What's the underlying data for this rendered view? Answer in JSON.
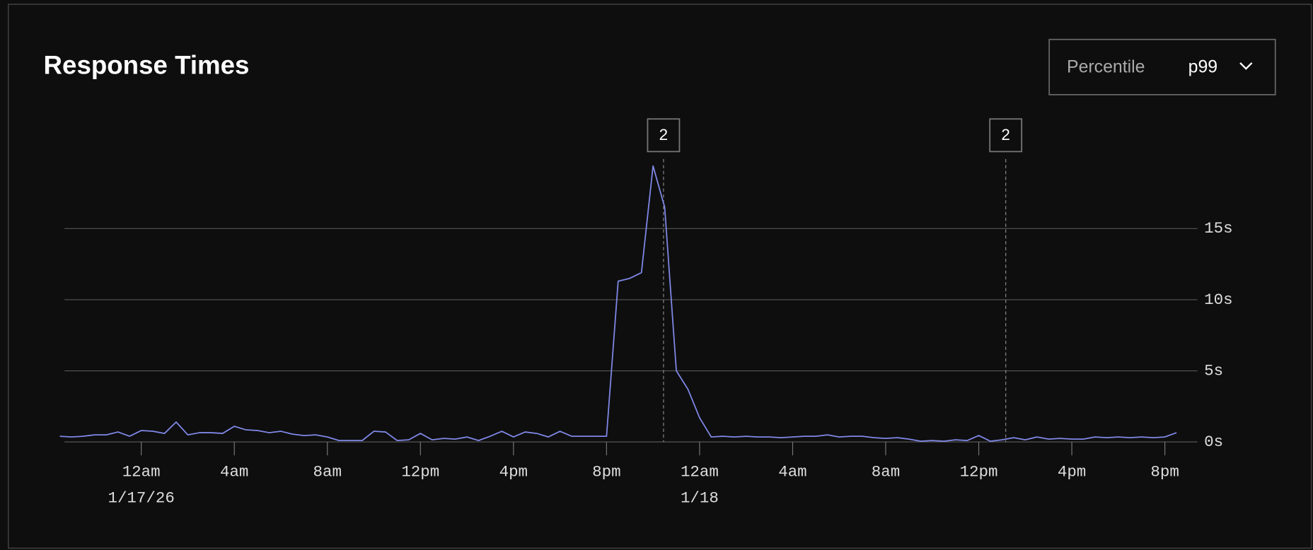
{
  "panel": {
    "percentile_label": "Percentile",
    "percentile_value": "p99"
  },
  "chart_data": {
    "type": "line",
    "title": "Response Times",
    "color": "#8088e8",
    "grid": true,
    "x": [
      -3.5,
      -3,
      -2.5,
      -2,
      -1.5,
      -1,
      -0.5,
      0,
      0.5,
      1,
      1.5,
      2,
      2.5,
      3,
      3.5,
      4,
      4.5,
      5,
      5.5,
      6,
      6.5,
      7,
      7.5,
      8,
      8.5,
      9,
      9.5,
      10,
      10.5,
      11,
      11.5,
      12,
      12.5,
      13,
      13.5,
      14,
      14.5,
      15,
      15.5,
      16,
      16.5,
      17,
      17.5,
      18,
      18.5,
      19,
      19.5,
      20,
      20.5,
      21,
      21.5,
      22,
      22.5,
      23,
      23.5,
      24,
      24.5,
      25,
      25.5,
      26,
      26.5,
      27,
      27.5,
      28,
      28.5,
      29,
      29.5,
      30,
      30.5,
      31,
      31.5,
      32,
      32.5,
      33,
      33.5,
      34,
      34.5,
      35,
      35.5,
      36,
      36.5,
      37,
      37.5,
      38,
      38.5,
      39,
      39.5,
      40,
      40.5,
      41,
      41.5,
      42,
      42.5,
      43,
      43.5,
      44,
      44.5
    ],
    "values": [
      0.4,
      0.35,
      0.4,
      0.5,
      0.5,
      0.7,
      0.4,
      0.8,
      0.75,
      0.6,
      1.4,
      0.5,
      0.65,
      0.65,
      0.6,
      1.1,
      0.85,
      0.8,
      0.65,
      0.75,
      0.55,
      0.45,
      0.5,
      0.35,
      0.1,
      0.1,
      0.1,
      0.75,
      0.7,
      0.1,
      0.15,
      0.6,
      0.15,
      0.25,
      0.2,
      0.35,
      0.1,
      0.4,
      0.75,
      0.35,
      0.7,
      0.6,
      0.35,
      0.75,
      0.4,
      0.4,
      0.4,
      0.4,
      11.3,
      11.5,
      11.9,
      19.4,
      16.5,
      5.0,
      3.7,
      1.7,
      0.35,
      0.4,
      0.35,
      0.4,
      0.35,
      0.35,
      0.3,
      0.35,
      0.4,
      0.4,
      0.5,
      0.35,
      0.4,
      0.4,
      0.3,
      0.25,
      0.3,
      0.2,
      0.05,
      0.1,
      0.05,
      0.15,
      0.1,
      0.45,
      0.05,
      0.15,
      0.3,
      0.15,
      0.35,
      0.2,
      0.25,
      0.2,
      0.2,
      0.35,
      0.3,
      0.35,
      0.3,
      0.35,
      0.3,
      0.35,
      0.65
    ],
    "xlim": [
      -3.3,
      45.4
    ],
    "xticks": [
      {
        "value": 0,
        "label": "12am",
        "date": "1/17/26"
      },
      {
        "value": 4,
        "label": "4am"
      },
      {
        "value": 8,
        "label": "8am"
      },
      {
        "value": 12,
        "label": "12pm"
      },
      {
        "value": 16,
        "label": "4pm"
      },
      {
        "value": 20,
        "label": "8pm"
      },
      {
        "value": 24,
        "label": "12am",
        "date": "1/18"
      },
      {
        "value": 28,
        "label": "4am"
      },
      {
        "value": 32,
        "label": "8am"
      },
      {
        "value": 36,
        "label": "12pm"
      },
      {
        "value": 40,
        "label": "4pm"
      },
      {
        "value": 44,
        "label": "8pm"
      }
    ],
    "ylim": [
      0,
      20
    ],
    "yticks": [
      {
        "value": 0,
        "label": "0s"
      },
      {
        "value": 5,
        "label": "5s"
      },
      {
        "value": 10,
        "label": "10s"
      },
      {
        "value": 15,
        "label": "15s"
      }
    ],
    "annotations": [
      {
        "x": 22.45,
        "label": "2"
      },
      {
        "x": 37.16,
        "label": "2"
      }
    ]
  }
}
